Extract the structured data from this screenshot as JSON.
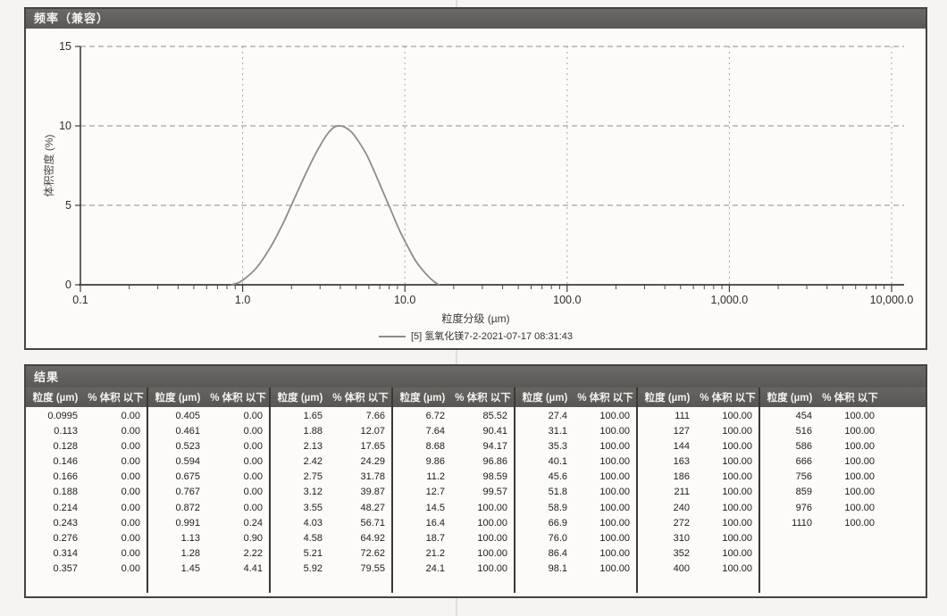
{
  "chart_panel": {
    "title": "频率（兼容）"
  },
  "chart_data": {
    "type": "line",
    "title": "频率（兼容）",
    "xlabel": "粒度分级 (µm)",
    "ylabel": "体积密度 (%)",
    "x_scale": "log",
    "xlim": [
      0.1,
      10000
    ],
    "ylim": [
      0,
      15
    ],
    "y_ticks": [
      0,
      5,
      10,
      15
    ],
    "x_tick_labels": [
      "0.1",
      "1.0",
      "10.0",
      "100.0",
      "1,000.0",
      "10,000.0"
    ],
    "grid": true,
    "legend_position": "bottom",
    "line_color": "#8c8c8c",
    "series": [
      {
        "name": "[5] 氢氧化镁7-2-2021-07-17 08:31:43",
        "x": [
          0.85,
          0.95,
          1.05,
          1.2,
          1.35,
          1.55,
          1.8,
          2.1,
          2.45,
          2.8,
          3.1,
          3.4,
          3.7,
          4.0,
          4.3,
          4.7,
          5.2,
          5.8,
          6.5,
          7.3,
          8.2,
          9.2,
          10.3,
          11.5,
          12.8,
          14.2,
          15.5,
          16.3
        ],
        "y": [
          0,
          0.15,
          0.45,
          1.0,
          1.7,
          2.7,
          4.0,
          5.5,
          7.0,
          8.2,
          9.0,
          9.6,
          9.95,
          10.0,
          9.9,
          9.6,
          9.0,
          8.2,
          7.1,
          5.9,
          4.7,
          3.5,
          2.5,
          1.6,
          0.95,
          0.45,
          0.12,
          0
        ]
      }
    ]
  },
  "results": {
    "title": "结果",
    "col_size": "粒度 (µm)",
    "col_pct": "% 体积 以下",
    "groups": [
      [
        [
          "0.0995",
          "0.00"
        ],
        [
          "0.113",
          "0.00"
        ],
        [
          "0.128",
          "0.00"
        ],
        [
          "0.146",
          "0.00"
        ],
        [
          "0.166",
          "0.00"
        ],
        [
          "0.188",
          "0.00"
        ],
        [
          "0.214",
          "0.00"
        ],
        [
          "0.243",
          "0.00"
        ],
        [
          "0.276",
          "0.00"
        ],
        [
          "0.314",
          "0.00"
        ],
        [
          "0.357",
          "0.00"
        ]
      ],
      [
        [
          "0.405",
          "0.00"
        ],
        [
          "0.461",
          "0.00"
        ],
        [
          "0.523",
          "0.00"
        ],
        [
          "0.594",
          "0.00"
        ],
        [
          "0.675",
          "0.00"
        ],
        [
          "0.767",
          "0.00"
        ],
        [
          "0.872",
          "0.00"
        ],
        [
          "0.991",
          "0.24"
        ],
        [
          "1.13",
          "0.90"
        ],
        [
          "1.28",
          "2.22"
        ],
        [
          "1.45",
          "4.41"
        ]
      ],
      [
        [
          "1.65",
          "7.66"
        ],
        [
          "1.88",
          "12.07"
        ],
        [
          "2.13",
          "17.65"
        ],
        [
          "2.42",
          "24.29"
        ],
        [
          "2.75",
          "31.78"
        ],
        [
          "3.12",
          "39.87"
        ],
        [
          "3.55",
          "48.27"
        ],
        [
          "4.03",
          "56.71"
        ],
        [
          "4.58",
          "64.92"
        ],
        [
          "5.21",
          "72.62"
        ],
        [
          "5.92",
          "79.55"
        ]
      ],
      [
        [
          "6.72",
          "85.52"
        ],
        [
          "7.64",
          "90.41"
        ],
        [
          "8.68",
          "94.17"
        ],
        [
          "9.86",
          "96.86"
        ],
        [
          "11.2",
          "98.59"
        ],
        [
          "12.7",
          "99.57"
        ],
        [
          "14.5",
          "100.00"
        ],
        [
          "16.4",
          "100.00"
        ],
        [
          "18.7",
          "100.00"
        ],
        [
          "21.2",
          "100.00"
        ],
        [
          "24.1",
          "100.00"
        ]
      ],
      [
        [
          "27.4",
          "100.00"
        ],
        [
          "31.1",
          "100.00"
        ],
        [
          "35.3",
          "100.00"
        ],
        [
          "40.1",
          "100.00"
        ],
        [
          "45.6",
          "100.00"
        ],
        [
          "51.8",
          "100.00"
        ],
        [
          "58.9",
          "100.00"
        ],
        [
          "66.9",
          "100.00"
        ],
        [
          "76.0",
          "100.00"
        ],
        [
          "86.4",
          "100.00"
        ],
        [
          "98.1",
          "100.00"
        ]
      ],
      [
        [
          "111",
          "100.00"
        ],
        [
          "127",
          "100.00"
        ],
        [
          "144",
          "100.00"
        ],
        [
          "163",
          "100.00"
        ],
        [
          "186",
          "100.00"
        ],
        [
          "211",
          "100.00"
        ],
        [
          "240",
          "100.00"
        ],
        [
          "272",
          "100.00"
        ],
        [
          "310",
          "100.00"
        ],
        [
          "352",
          "100.00"
        ],
        [
          "400",
          "100.00"
        ]
      ],
      [
        [
          "454",
          "100.00"
        ],
        [
          "516",
          "100.00"
        ],
        [
          "586",
          "100.00"
        ],
        [
          "666",
          "100.00"
        ],
        [
          "756",
          "100.00"
        ],
        [
          "859",
          "100.00"
        ],
        [
          "976",
          "100.00"
        ],
        [
          "1110",
          "100.00"
        ]
      ]
    ]
  }
}
